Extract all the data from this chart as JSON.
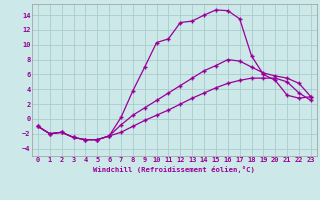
{
  "xlabel": "Windchill (Refroidissement éolien,°C)",
  "bg_color": "#cce8e8",
  "line_color": "#990099",
  "grid_color": "#aacccc",
  "xlim": [
    -0.5,
    23.5
  ],
  "ylim": [
    -5,
    15.5
  ],
  "yticks": [
    -4,
    -2,
    0,
    2,
    4,
    6,
    8,
    10,
    12,
    14
  ],
  "xticks": [
    0,
    1,
    2,
    3,
    4,
    5,
    6,
    7,
    8,
    9,
    10,
    11,
    12,
    13,
    14,
    15,
    16,
    17,
    18,
    19,
    20,
    21,
    22,
    23
  ],
  "line1_x": [
    0,
    1,
    2,
    3,
    4,
    5,
    6,
    7,
    8,
    9,
    10,
    11,
    12,
    13,
    14,
    15,
    16,
    17,
    18,
    19,
    20,
    21,
    22,
    23
  ],
  "line1_y": [
    -1,
    -2,
    -1.8,
    -2.5,
    -2.8,
    -2.8,
    -2.3,
    0.2,
    3.8,
    7,
    10.3,
    10.8,
    13.0,
    13.2,
    14.0,
    14.7,
    14.6,
    13.5,
    8.5,
    6.0,
    5.2,
    3.2,
    2.8,
    3.0
  ],
  "line2_x": [
    0,
    1,
    2,
    3,
    4,
    5,
    6,
    7,
    8,
    9,
    10,
    11,
    12,
    13,
    14,
    15,
    16,
    17,
    18,
    19,
    20,
    21,
    22,
    23
  ],
  "line2_y": [
    -1,
    -2,
    -1.8,
    -2.5,
    -2.8,
    -2.8,
    -2.3,
    -0.8,
    0.5,
    1.5,
    2.5,
    3.5,
    4.5,
    5.5,
    6.5,
    7.2,
    8.0,
    7.8,
    7.0,
    6.2,
    5.8,
    5.5,
    4.8,
    3.0
  ],
  "line3_x": [
    0,
    1,
    2,
    3,
    4,
    5,
    6,
    7,
    8,
    9,
    10,
    11,
    12,
    13,
    14,
    15,
    16,
    17,
    18,
    19,
    20,
    21,
    22,
    23
  ],
  "line3_y": [
    -1,
    -2,
    -1.8,
    -2.5,
    -2.8,
    -2.8,
    -2.3,
    -1.8,
    -1.0,
    -0.2,
    0.5,
    1.2,
    2.0,
    2.8,
    3.5,
    4.2,
    4.8,
    5.2,
    5.5,
    5.5,
    5.5,
    5.0,
    3.5,
    2.5
  ]
}
